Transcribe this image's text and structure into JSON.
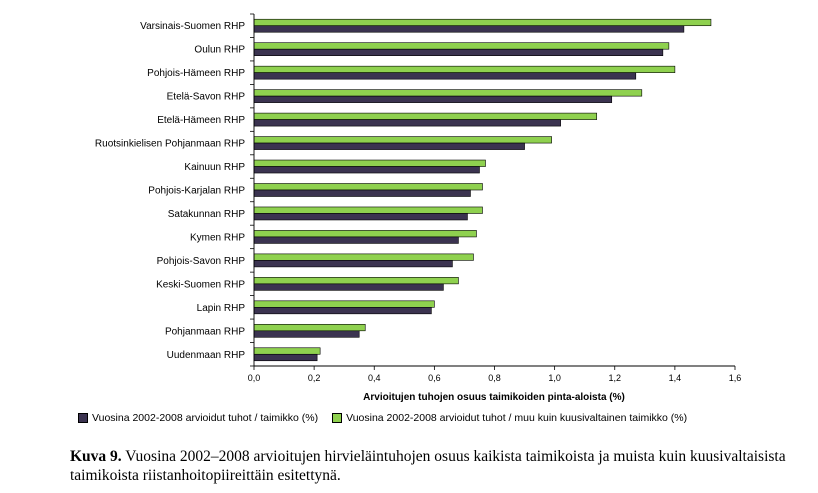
{
  "chart_data": {
    "type": "bar",
    "orientation": "horizontal",
    "categories": [
      "Varsinais-Suomen RHP",
      "Oulun RHP",
      "Pohjois-Hämeen RHP",
      "Etelä-Savon RHP",
      "Etelä-Hämeen RHP",
      "Ruotsinkielisen Pohjanmaan RHP",
      "Kainuun RHP",
      "Pohjois-Karjalan RHP",
      "Satakunnan RHP",
      "Kymen RHP",
      "Pohjois-Savon RHP",
      "Keski-Suomen RHP",
      "Lapin RHP",
      "Pohjanmaan RHP",
      "Uudenmaan RHP"
    ],
    "series": [
      {
        "name": "Vuosina 2002-2008 arvioidut tuhot / taimikko (%)",
        "color": "#3b3350",
        "values": [
          1.43,
          1.36,
          1.27,
          1.19,
          1.02,
          0.9,
          0.75,
          0.72,
          0.71,
          0.68,
          0.66,
          0.63,
          0.59,
          0.35,
          0.21
        ]
      },
      {
        "name": "Vuosina 2002-2008 arvioidut tuhot / muu kuin kuusivaltainen taimikko (%)",
        "color": "#8fd14f",
        "values": [
          1.52,
          1.38,
          1.4,
          1.29,
          1.14,
          0.99,
          0.77,
          0.76,
          0.76,
          0.74,
          0.73,
          0.68,
          0.6,
          0.37,
          0.22
        ]
      }
    ],
    "xlabel": "Arvioitujen tuhojen osuus taimikoiden pinta-aloista (%)",
    "ylabel": "",
    "xlim": [
      0,
      1.6
    ],
    "xticks": [
      "0,0",
      "0,2",
      "0,4",
      "0,6",
      "0,8",
      "1,0",
      "1,2",
      "1,4",
      "1,6"
    ],
    "grid": false,
    "legend_position": "bottom"
  },
  "caption": {
    "label": "Kuva 9.",
    "text": " Vuosina 2002–2008 arvioitujen hirvieläintuhojen osuus kaikista taimikoista ja muista kuin kuusivaltaisista taimikoista riistanhoitopiireittäin esitettynä."
  }
}
